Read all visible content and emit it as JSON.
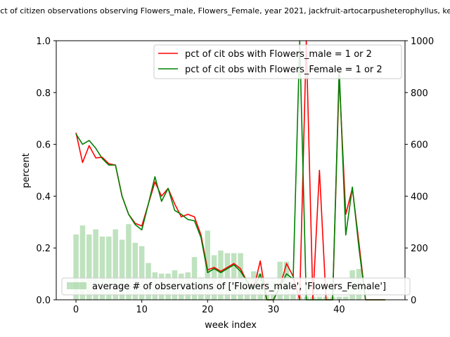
{
  "chart_data": {
    "type": "line",
    "title": "pct of citizen observations observing Flowers_male, Flowers_Female, year 2021, jackfruit-artocarpusheterophyllus, ker",
    "xlabel": "week index",
    "ylabel": "percent",
    "xlim": [
      -3,
      50
    ],
    "ylim": [
      0,
      1.0
    ],
    "y2lim": [
      0,
      1000
    ],
    "xticks": [
      0,
      10,
      20,
      30,
      40
    ],
    "yticks": [
      0.0,
      0.2,
      0.4,
      0.6,
      0.8,
      1.0
    ],
    "y2ticks": [
      0,
      200,
      400,
      600,
      800,
      1000
    ],
    "legend_placement": "upper-right",
    "bar_legend_placement": "lower-left",
    "grid": false,
    "series": [
      {
        "name": "pct of cit obs with Flowers_male = 1 or 2",
        "color": "#ff0000",
        "axis": "left",
        "x": [
          0,
          1,
          2,
          3,
          4,
          5,
          6,
          7,
          8,
          9,
          10,
          11,
          12,
          13,
          14,
          15,
          16,
          17,
          18,
          19,
          20,
          21,
          22,
          23,
          24,
          25,
          26,
          27,
          28,
          29,
          30,
          31,
          32,
          33,
          34,
          35,
          36,
          37,
          38,
          39,
          40,
          41,
          42,
          43,
          44,
          45,
          46,
          47
        ],
        "values": [
          0.645,
          0.53,
          0.595,
          0.548,
          0.55,
          0.525,
          0.52,
          0.4,
          0.33,
          0.295,
          0.285,
          0.37,
          0.455,
          0.4,
          0.43,
          0.37,
          0.32,
          0.33,
          0.32,
          0.25,
          0.115,
          0.125,
          0.11,
          0.125,
          0.14,
          0.12,
          0.07,
          0.04,
          0.15,
          0.0,
          0.0,
          0.05,
          0.14,
          0.09,
          0.0,
          1.0,
          0.0,
          0.5,
          0.0,
          0.0,
          0.86,
          0.33,
          0.43,
          0.22,
          0.0,
          0.0,
          0.0,
          0.0
        ]
      },
      {
        "name": "pct of cit obs with Flowers_Female = 1 or 2",
        "color": "#008000",
        "axis": "left",
        "x": [
          0,
          1,
          2,
          3,
          4,
          5,
          6,
          7,
          8,
          9,
          10,
          11,
          12,
          13,
          14,
          15,
          16,
          17,
          18,
          19,
          20,
          21,
          22,
          23,
          24,
          25,
          26,
          27,
          28,
          29,
          30,
          31,
          32,
          33,
          34,
          35,
          36,
          37,
          38,
          39,
          40,
          41,
          42,
          43,
          44,
          45,
          46,
          47
        ],
        "values": [
          0.64,
          0.6,
          0.615,
          0.585,
          0.545,
          0.52,
          0.52,
          0.4,
          0.33,
          0.29,
          0.27,
          0.37,
          0.475,
          0.38,
          0.43,
          0.345,
          0.33,
          0.31,
          0.305,
          0.24,
          0.105,
          0.12,
          0.105,
          0.12,
          0.135,
          0.11,
          0.07,
          0.04,
          0.1,
          0.0,
          0.0,
          0.05,
          0.1,
          0.08,
          1.0,
          0.0,
          0.0,
          0.0,
          0.0,
          0.0,
          0.89,
          0.25,
          0.435,
          0.2,
          0.0,
          0.0,
          0.0,
          0.0
        ]
      },
      {
        "name": "average # of observations of ['Flowers_male', 'Flowers_Female']",
        "color": "#2ca02c",
        "axis": "right",
        "type": "bar",
        "x": [
          0,
          1,
          2,
          3,
          4,
          5,
          6,
          7,
          8,
          9,
          10,
          11,
          12,
          13,
          14,
          15,
          16,
          17,
          18,
          19,
          20,
          21,
          22,
          23,
          24,
          25,
          26,
          27,
          28,
          29,
          30,
          31,
          32,
          33,
          34,
          35,
          36,
          37,
          38,
          39,
          40,
          41,
          42,
          43,
          44,
          45,
          46,
          47
        ],
        "values": [
          252,
          287,
          252,
          272,
          244,
          244,
          272,
          232,
          292,
          220,
          207,
          142,
          106,
          101,
          101,
          114,
          101,
          106,
          165,
          86,
          267,
          172,
          190,
          180,
          180,
          180,
          86,
          110,
          101,
          73,
          73,
          147,
          147,
          28,
          12,
          12,
          12,
          12,
          12,
          12,
          12,
          12,
          114,
          119,
          0,
          0,
          0,
          0
        ]
      }
    ]
  }
}
